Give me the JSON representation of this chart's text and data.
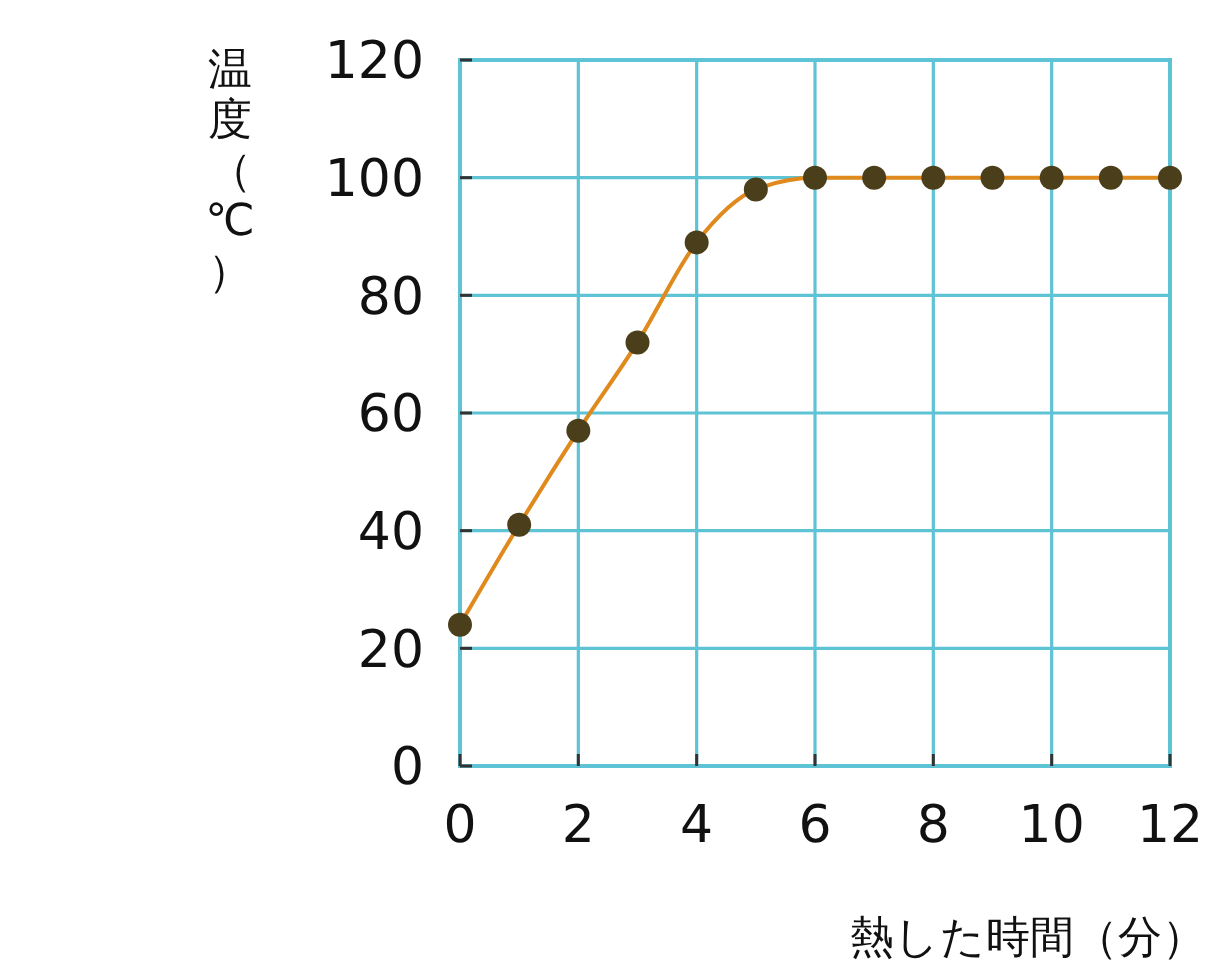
{
  "chart_data": {
    "type": "line",
    "xlabel": "熱した時間（分）",
    "ylabel": "温度（℃）",
    "x": [
      0,
      1,
      2,
      3,
      4,
      5,
      6,
      7,
      8,
      9,
      10,
      11,
      12
    ],
    "series": [
      {
        "color": "#e08a1e",
        "values": [
          24,
          41,
          57,
          72,
          89,
          98,
          100,
          100,
          100,
          100,
          100,
          100,
          100
        ]
      }
    ],
    "xlim": [
      0,
      12
    ],
    "xticks": [
      0,
      2,
      4,
      6,
      8,
      10,
      12
    ],
    "ylim": [
      0,
      120
    ],
    "yticks": [
      0,
      20,
      40,
      60,
      80,
      100,
      120
    ],
    "grid": true,
    "marker": "circle",
    "line_style": "solid"
  }
}
